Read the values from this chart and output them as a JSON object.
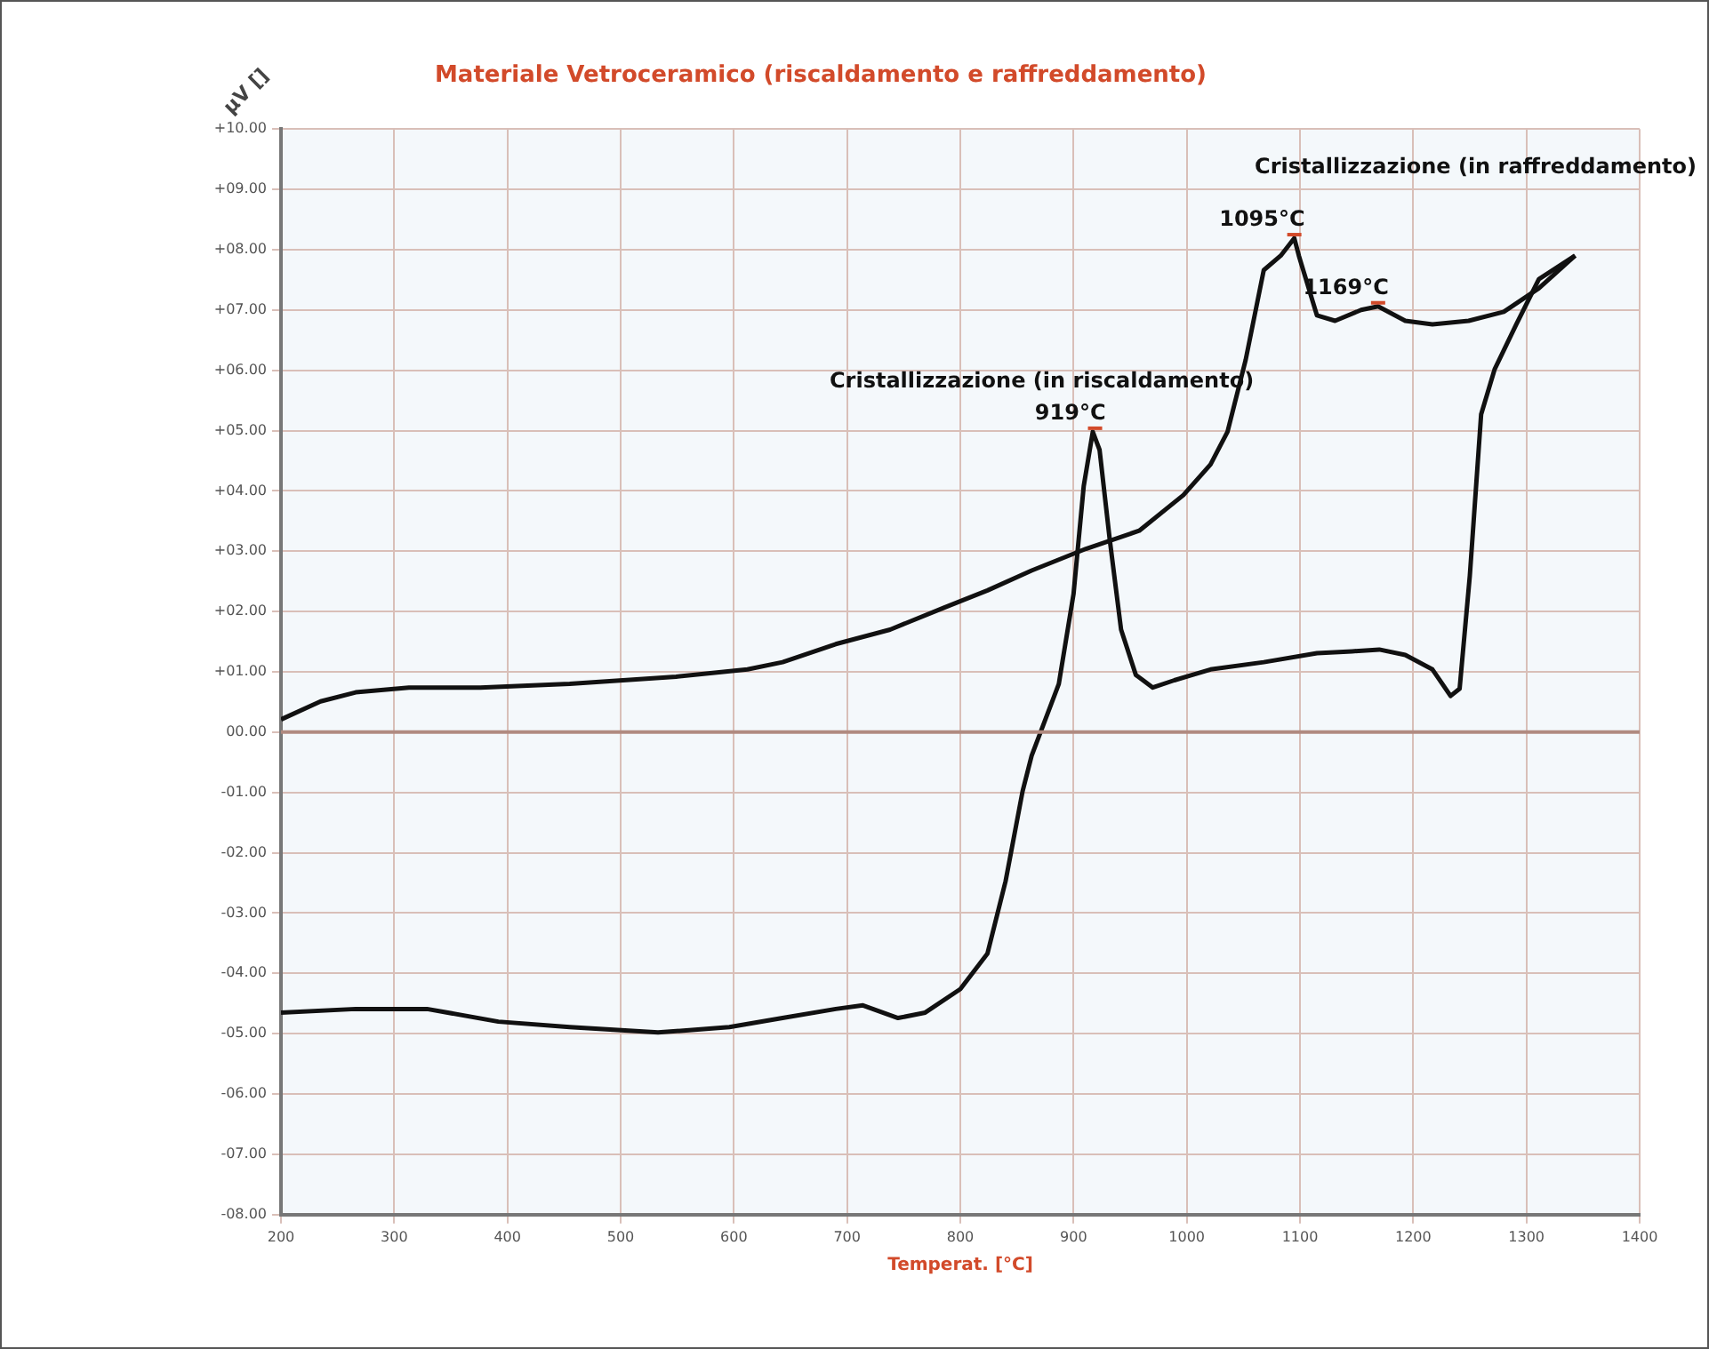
{
  "chart_data": {
    "type": "line",
    "title": "Materiale Vetroceramico (riscaldamento e raffreddamento)",
    "xlabel": "Temperat. [°C]",
    "ylabel": "µV []",
    "series": [
      {
        "color": "#111111",
        "x": [
          200,
          266,
          329,
          392,
          455,
          533,
          596,
          643,
          690,
          714,
          745,
          769,
          800,
          824,
          840,
          855,
          863,
          887,
          900,
          909,
          917,
          923,
          932,
          942,
          955,
          970,
          989,
          1021,
          1068,
          1115,
          1146,
          1170,
          1193,
          1217,
          1233,
          1241,
          1250,
          1260,
          1272,
          1291,
          1311,
          1343
        ],
        "values": [
          -4.65,
          -4.59,
          -4.59,
          -4.8,
          -4.89,
          -4.98,
          -4.89,
          -4.74,
          -4.59,
          -4.53,
          -4.74,
          -4.65,
          -4.26,
          -3.67,
          -2.47,
          -0.98,
          -0.39,
          0.8,
          2.29,
          4.08,
          4.98,
          4.68,
          3.19,
          1.7,
          0.95,
          0.74,
          0.86,
          1.04,
          1.16,
          1.31,
          1.34,
          1.37,
          1.28,
          1.04,
          0.6,
          0.72,
          2.59,
          5.27,
          6.02,
          6.76,
          7.51,
          7.9
        ]
      },
      {
        "color": "#111111",
        "x": [
          1343,
          1311,
          1280,
          1249,
          1217,
          1193,
          1169,
          1154,
          1131,
          1115,
          1099,
          1095,
          1083,
          1068,
          1052,
          1036,
          1021,
          997,
          958,
          911,
          863,
          824,
          785,
          738,
          690,
          643,
          612,
          549,
          455,
          376,
          313,
          266,
          235,
          200
        ],
        "values": [
          7.9,
          7.36,
          6.97,
          6.82,
          6.76,
          6.82,
          7.06,
          7.0,
          6.82,
          6.91,
          7.9,
          8.19,
          7.9,
          7.66,
          6.17,
          4.98,
          4.44,
          3.93,
          3.34,
          3.04,
          2.68,
          2.35,
          2.06,
          1.7,
          1.46,
          1.16,
          1.04,
          0.92,
          0.8,
          0.74,
          0.74,
          0.66,
          0.51,
          0.21
        ]
      }
    ],
    "xlim": [
      200,
      1400
    ],
    "xticks": [
      200,
      300,
      400,
      500,
      600,
      700,
      800,
      900,
      1000,
      1100,
      1200,
      1300,
      1400
    ],
    "ylim": [
      -8,
      10
    ],
    "yticks": [
      {
        "value": 10,
        "label": "+10.00"
      },
      {
        "value": 9,
        "label": "+09.00"
      },
      {
        "value": 8,
        "label": "+08.00"
      },
      {
        "value": 7,
        "label": "+07.00"
      },
      {
        "value": 6,
        "label": "+06.00"
      },
      {
        "value": 5,
        "label": "+05.00"
      },
      {
        "value": 4,
        "label": "+04.00"
      },
      {
        "value": 3,
        "label": "+03.00"
      },
      {
        "value": 2,
        "label": "+02.00"
      },
      {
        "value": 1,
        "label": "+01.00"
      },
      {
        "value": 0,
        "label": "00.00"
      },
      {
        "value": -1,
        "label": "-01.00"
      },
      {
        "value": -2,
        "label": "-02.00"
      },
      {
        "value": -3,
        "label": "-03.00"
      },
      {
        "value": -4,
        "label": "-04.00"
      },
      {
        "value": -5,
        "label": "-05.00"
      },
      {
        "value": -6,
        "label": "-06.00"
      },
      {
        "value": -7,
        "label": "-07.00"
      },
      {
        "value": -8,
        "label": "-08.00"
      }
    ],
    "grid": true,
    "legend": false,
    "marker": "none",
    "line_style": "solid",
    "annotations": [
      "Cristallizzazione (in riscaldamento)",
      {
        "text": "919°C",
        "x": 919,
        "y": 4.98
      },
      {
        "text": "1095°C",
        "x": 1095,
        "y": 8.19
      },
      {
        "text": "1169°C",
        "x": 1169,
        "y": 7.06
      },
      "Cristallizzazione (in raffreddamento)"
    ],
    "ref_lines": [
      {
        "axis": "y",
        "value": 0,
        "color": "#b08a80"
      }
    ]
  }
}
